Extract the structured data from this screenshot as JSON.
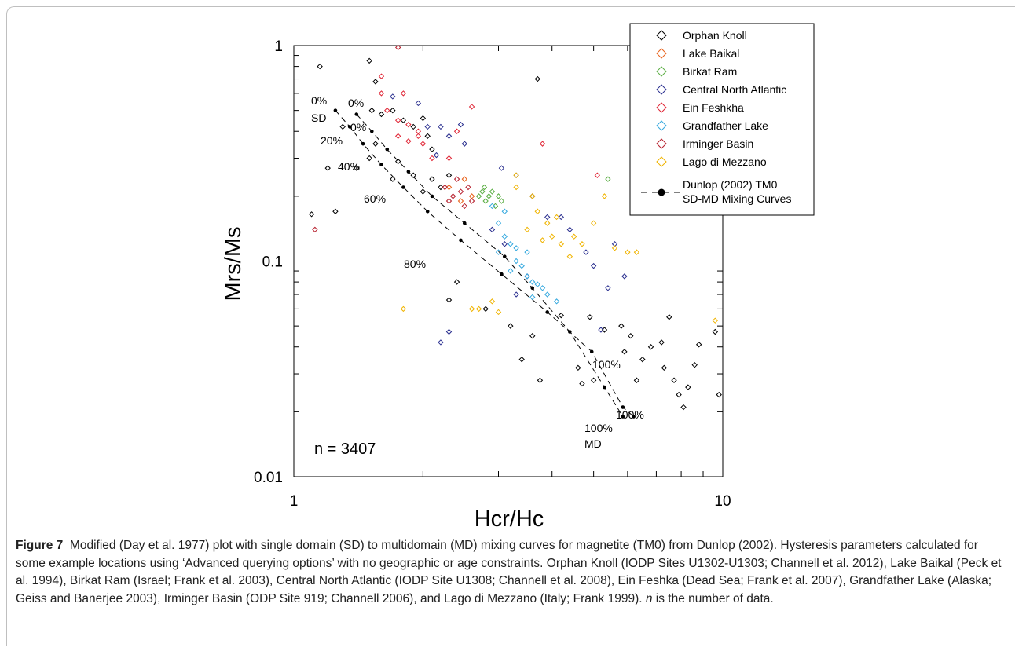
{
  "chart_data": {
    "type": "scatter",
    "x_scale": "log",
    "y_scale": "log",
    "xlabel": "Hcr/Hc",
    "ylabel": "Mrs/Ms",
    "xlim": [
      1,
      10
    ],
    "ylim": [
      0.01,
      1
    ],
    "x_ticks": [
      "1",
      "10"
    ],
    "y_ticks": [
      "0.01",
      "0.1",
      "1"
    ],
    "grid": false,
    "legend_position": "top-right",
    "n_label": "n = 3407",
    "series": [
      {
        "name": "Orphan Knoll",
        "color": "#000000",
        "marker": "diamond",
        "points": [
          [
            1.15,
            0.8
          ],
          [
            1.5,
            0.85
          ],
          [
            1.55,
            0.68
          ],
          [
            1.6,
            0.48
          ],
          [
            1.52,
            0.5
          ],
          [
            1.3,
            0.42
          ],
          [
            1.2,
            0.27
          ],
          [
            1.4,
            0.27
          ],
          [
            1.5,
            0.3
          ],
          [
            1.1,
            0.165
          ],
          [
            1.25,
            0.17
          ],
          [
            1.55,
            0.35
          ],
          [
            1.7,
            0.5
          ],
          [
            1.8,
            0.45
          ],
          [
            1.9,
            0.42
          ],
          [
            2.0,
            0.46
          ],
          [
            2.05,
            0.38
          ],
          [
            2.1,
            0.33
          ],
          [
            1.75,
            0.29
          ],
          [
            1.7,
            0.24
          ],
          [
            1.9,
            0.25
          ],
          [
            2.0,
            0.21
          ],
          [
            2.1,
            0.24
          ],
          [
            2.2,
            0.22
          ],
          [
            2.3,
            0.25
          ],
          [
            3.7,
            0.7
          ],
          [
            2.4,
            0.08
          ],
          [
            2.3,
            0.066
          ],
          [
            2.8,
            0.06
          ],
          [
            3.2,
            0.05
          ],
          [
            3.4,
            0.035
          ],
          [
            3.6,
            0.045
          ],
          [
            3.75,
            0.028
          ],
          [
            4.2,
            0.056
          ],
          [
            4.6,
            0.032
          ],
          [
            4.7,
            0.027
          ],
          [
            5.0,
            0.028
          ],
          [
            5.8,
            0.05
          ],
          [
            6.1,
            0.045
          ],
          [
            6.5,
            0.035
          ],
          [
            6.8,
            0.04
          ],
          [
            7.2,
            0.042
          ],
          [
            7.3,
            0.032
          ],
          [
            7.5,
            0.055
          ],
          [
            7.7,
            0.028
          ],
          [
            7.9,
            0.024
          ],
          [
            8.1,
            0.021
          ],
          [
            8.3,
            0.026
          ],
          [
            8.6,
            0.033
          ],
          [
            8.8,
            0.041
          ],
          [
            9.6,
            0.047
          ],
          [
            9.8,
            0.024
          ],
          [
            6.3,
            0.028
          ],
          [
            5.9,
            0.038
          ],
          [
            5.3,
            0.048
          ],
          [
            4.9,
            0.055
          ]
        ]
      },
      {
        "name": "Lake Baikal",
        "color": "#e8611a",
        "marker": "diamond",
        "points": [
          [
            2.3,
            0.22
          ],
          [
            2.45,
            0.19
          ],
          [
            2.5,
            0.24
          ],
          [
            2.6,
            0.2
          ]
        ]
      },
      {
        "name": "Birkat Ram",
        "color": "#5bae44",
        "marker": "diamond",
        "points": [
          [
            2.7,
            0.2
          ],
          [
            2.75,
            0.21
          ],
          [
            2.8,
            0.19
          ],
          [
            2.85,
            0.2
          ],
          [
            2.9,
            0.21
          ],
          [
            2.95,
            0.18
          ],
          [
            3.0,
            0.2
          ],
          [
            3.05,
            0.19
          ],
          [
            2.78,
            0.22
          ],
          [
            5.4,
            0.24
          ]
        ]
      },
      {
        "name": "Central North Atlantic",
        "color": "#2a2f8f",
        "marker": "diamond",
        "points": [
          [
            1.7,
            0.58
          ],
          [
            1.95,
            0.54
          ],
          [
            2.05,
            0.42
          ],
          [
            2.2,
            0.42
          ],
          [
            2.3,
            0.38
          ],
          [
            2.45,
            0.43
          ],
          [
            2.5,
            0.35
          ],
          [
            2.15,
            0.31
          ],
          [
            3.05,
            0.27
          ],
          [
            3.3,
            0.25
          ],
          [
            3.6,
            0.2
          ],
          [
            3.9,
            0.16
          ],
          [
            4.2,
            0.16
          ],
          [
            4.4,
            0.14
          ],
          [
            4.8,
            0.11
          ],
          [
            5.0,
            0.095
          ],
          [
            5.4,
            0.075
          ],
          [
            5.6,
            0.12
          ],
          [
            5.9,
            0.085
          ],
          [
            2.2,
            0.042
          ],
          [
            2.3,
            0.047
          ],
          [
            3.5,
            0.085
          ],
          [
            3.3,
            0.07
          ],
          [
            5.2,
            0.048
          ],
          [
            2.9,
            0.14
          ],
          [
            3.1,
            0.12
          ]
        ]
      },
      {
        "name": "Ein Feshkha",
        "color": "#e02636",
        "marker": "diamond",
        "points": [
          [
            1.6,
            0.72
          ],
          [
            1.6,
            0.6
          ],
          [
            1.8,
            0.6
          ],
          [
            1.65,
            0.5
          ],
          [
            1.75,
            0.45
          ],
          [
            1.85,
            0.43
          ],
          [
            1.95,
            0.4
          ],
          [
            1.75,
            0.38
          ],
          [
            1.85,
            0.36
          ],
          [
            2.0,
            0.35
          ],
          [
            1.95,
            0.38
          ],
          [
            2.1,
            0.3
          ],
          [
            3.8,
            0.35
          ],
          [
            5.1,
            0.25
          ],
          [
            6.8,
            0.32
          ],
          [
            2.6,
            0.52
          ],
          [
            2.4,
            0.4
          ],
          [
            2.3,
            0.3
          ]
        ]
      },
      {
        "name": "Grandfather Lake",
        "color": "#36a9df",
        "marker": "diamond",
        "points": [
          [
            2.9,
            0.18
          ],
          [
            3.0,
            0.15
          ],
          [
            3.1,
            0.13
          ],
          [
            3.2,
            0.12
          ],
          [
            3.3,
            0.1
          ],
          [
            3.4,
            0.095
          ],
          [
            3.5,
            0.085
          ],
          [
            3.6,
            0.08
          ],
          [
            3.7,
            0.078
          ],
          [
            3.8,
            0.075
          ],
          [
            3.3,
            0.115
          ],
          [
            3.5,
            0.11
          ],
          [
            3.1,
            0.17
          ],
          [
            3.9,
            0.07
          ],
          [
            4.1,
            0.065
          ],
          [
            3.2,
            0.09
          ],
          [
            3.0,
            0.11
          ],
          [
            3.6,
            0.068
          ]
        ]
      },
      {
        "name": "Irminger Basin",
        "color": "#b7202e",
        "marker": "diamond",
        "points": [
          [
            1.75,
            0.98
          ],
          [
            2.25,
            0.22
          ],
          [
            2.35,
            0.2
          ],
          [
            2.45,
            0.21
          ],
          [
            2.5,
            0.18
          ],
          [
            2.55,
            0.22
          ],
          [
            2.4,
            0.24
          ],
          [
            2.3,
            0.19
          ],
          [
            1.12,
            0.14
          ],
          [
            2.6,
            0.19
          ]
        ]
      },
      {
        "name": "Lago di Mezzano",
        "color": "#f0b400",
        "marker": "diamond",
        "points": [
          [
            3.3,
            0.25
          ],
          [
            3.3,
            0.22
          ],
          [
            3.6,
            0.2
          ],
          [
            3.9,
            0.15
          ],
          [
            4.0,
            0.13
          ],
          [
            4.2,
            0.12
          ],
          [
            4.5,
            0.13
          ],
          [
            4.7,
            0.12
          ],
          [
            5.0,
            0.15
          ],
          [
            5.3,
            0.2
          ],
          [
            5.6,
            0.115
          ],
          [
            6.0,
            0.11
          ],
          [
            6.3,
            0.11
          ],
          [
            4.4,
            0.105
          ],
          [
            3.8,
            0.125
          ],
          [
            3.5,
            0.14
          ],
          [
            2.6,
            0.06
          ],
          [
            2.7,
            0.06
          ],
          [
            2.9,
            0.065
          ],
          [
            3.0,
            0.058
          ],
          [
            1.8,
            0.06
          ],
          [
            9.6,
            0.053
          ],
          [
            4.1,
            0.16
          ],
          [
            3.7,
            0.17
          ]
        ]
      }
    ],
    "mixing_curves": {
      "name": "Dunlop (2002) TM0 SD-MD Mixing Curves",
      "color": "#000000",
      "curves": [
        {
          "points": [
            [
              1.25,
              0.5
            ],
            [
              1.35,
              0.42
            ],
            [
              1.45,
              0.35
            ],
            [
              1.6,
              0.28
            ],
            [
              1.8,
              0.22
            ],
            [
              2.05,
              0.17
            ],
            [
              2.45,
              0.125
            ],
            [
              3.05,
              0.087
            ],
            [
              3.9,
              0.058
            ],
            [
              4.95,
              0.038
            ],
            [
              5.85,
              0.021
            ],
            [
              6.2,
              0.019
            ]
          ]
        },
        {
          "points": [
            [
              1.4,
              0.48
            ],
            [
              1.52,
              0.4
            ],
            [
              1.65,
              0.33
            ],
            [
              1.85,
              0.26
            ],
            [
              2.1,
              0.2
            ],
            [
              2.5,
              0.15
            ],
            [
              3.1,
              0.105
            ],
            [
              3.6,
              0.075
            ],
            [
              4.4,
              0.047
            ],
            [
              5.3,
              0.026
            ],
            [
              5.85,
              0.019
            ]
          ]
        }
      ],
      "labels": [
        "0%",
        "SD",
        "0%",
        "0%",
        "20%",
        "40%",
        "60%",
        "80%",
        "100%",
        "100%",
        "100%",
        "MD"
      ]
    }
  },
  "legend": {
    "items": [
      {
        "label": "Orphan Knoll",
        "color": "#000000"
      },
      {
        "label": "Lake Baikal",
        "color": "#e8611a"
      },
      {
        "label": "Birkat Ram",
        "color": "#5bae44"
      },
      {
        "label": "Central North Atlantic",
        "color": "#2a2f8f"
      },
      {
        "label": "Ein Feshkha",
        "color": "#e02636"
      },
      {
        "label": "Grandfather Lake",
        "color": "#36a9df"
      },
      {
        "label": "Irminger Basin",
        "color": "#b7202e"
      },
      {
        "label": "Lago di Mezzano",
        "color": "#f0b400"
      }
    ],
    "mixing_label_line1": "Dunlop (2002) TM0",
    "mixing_label_line2": "SD-MD Mixing Curves"
  },
  "caption": {
    "figure_label": "Figure 7",
    "text_1": "Modified (Day et al. 1977) plot with single domain (SD) to multidomain (MD) mixing curves for magnetite (TM0) from Dunlop (2002). Hysteresis parameters calculated for some example locations using ‘Advanced querying options’ with no geographic or age constraints. Orphan Knoll (IODP Sites U1302-U1303; Channell et al. 2012), Lake Baikal (Peck et al. 1994), Birkat Ram (Israel; Frank et al. 2003), Central North Atlantic (IODP Site U1308; Channell et al. 2008), Ein Feshka (Dead Sea; Frank et al. 2007), Grandfather Lake (Alaska; Geiss and Banerjee 2003), Irminger Basin (ODP Site 919; Channell 2006), and Lago di Mezzano (Italy; Frank 1999).",
    "italic_n": "n",
    "text_2": "is the number of data."
  }
}
